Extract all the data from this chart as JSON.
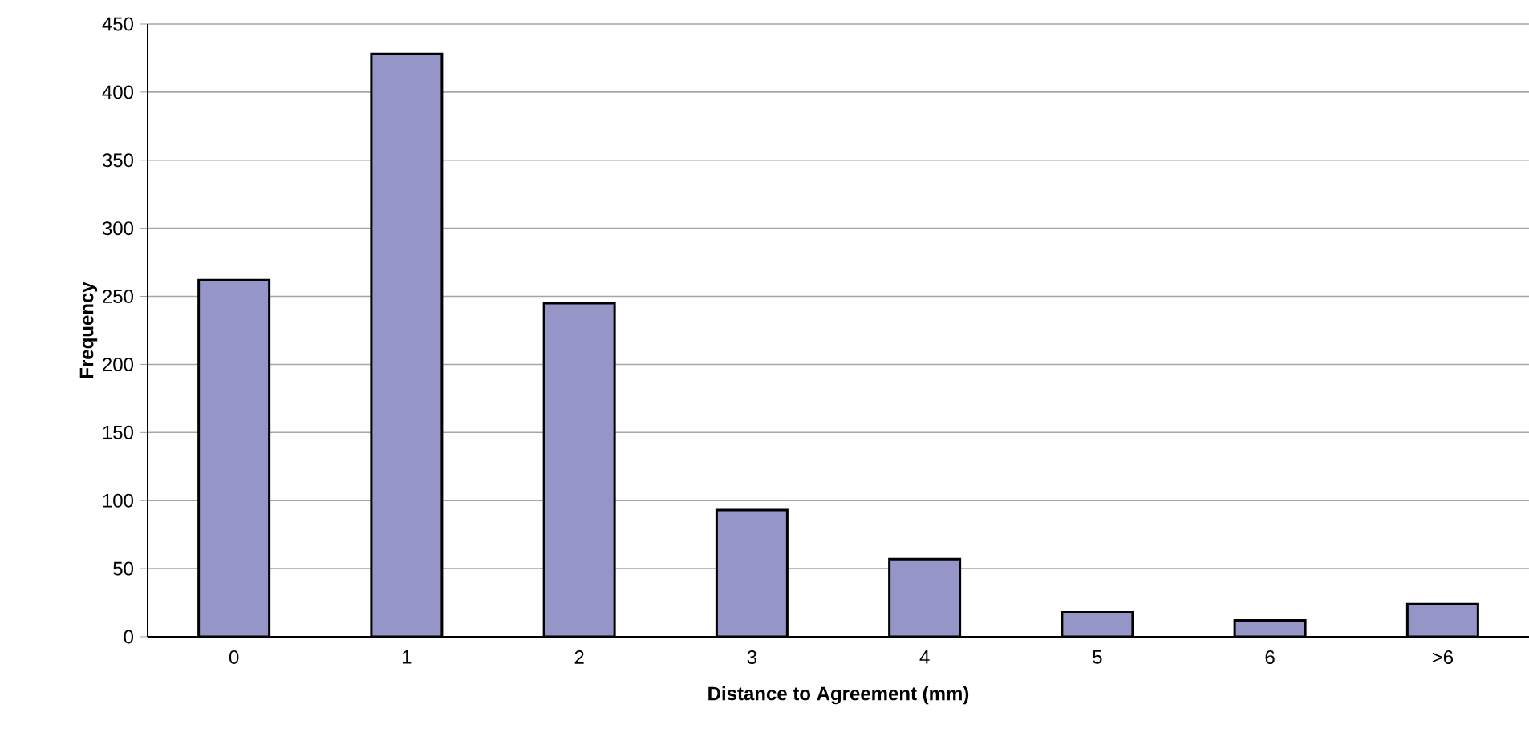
{
  "chart_data": {
    "type": "bar",
    "xlabel": "Distance to Agreement (mm)",
    "ylabel": "Frequency",
    "categories": [
      "0",
      "1",
      "2",
      "3",
      "4",
      "5",
      "6",
      ">6"
    ],
    "values": [
      262,
      428,
      245,
      93,
      57,
      18,
      12,
      24
    ],
    "color": "#9595c8",
    "ylim": [
      0,
      450
    ],
    "yticks": [
      0,
      50,
      100,
      150,
      200,
      250,
      300,
      350,
      400,
      450
    ],
    "grid": "y"
  }
}
